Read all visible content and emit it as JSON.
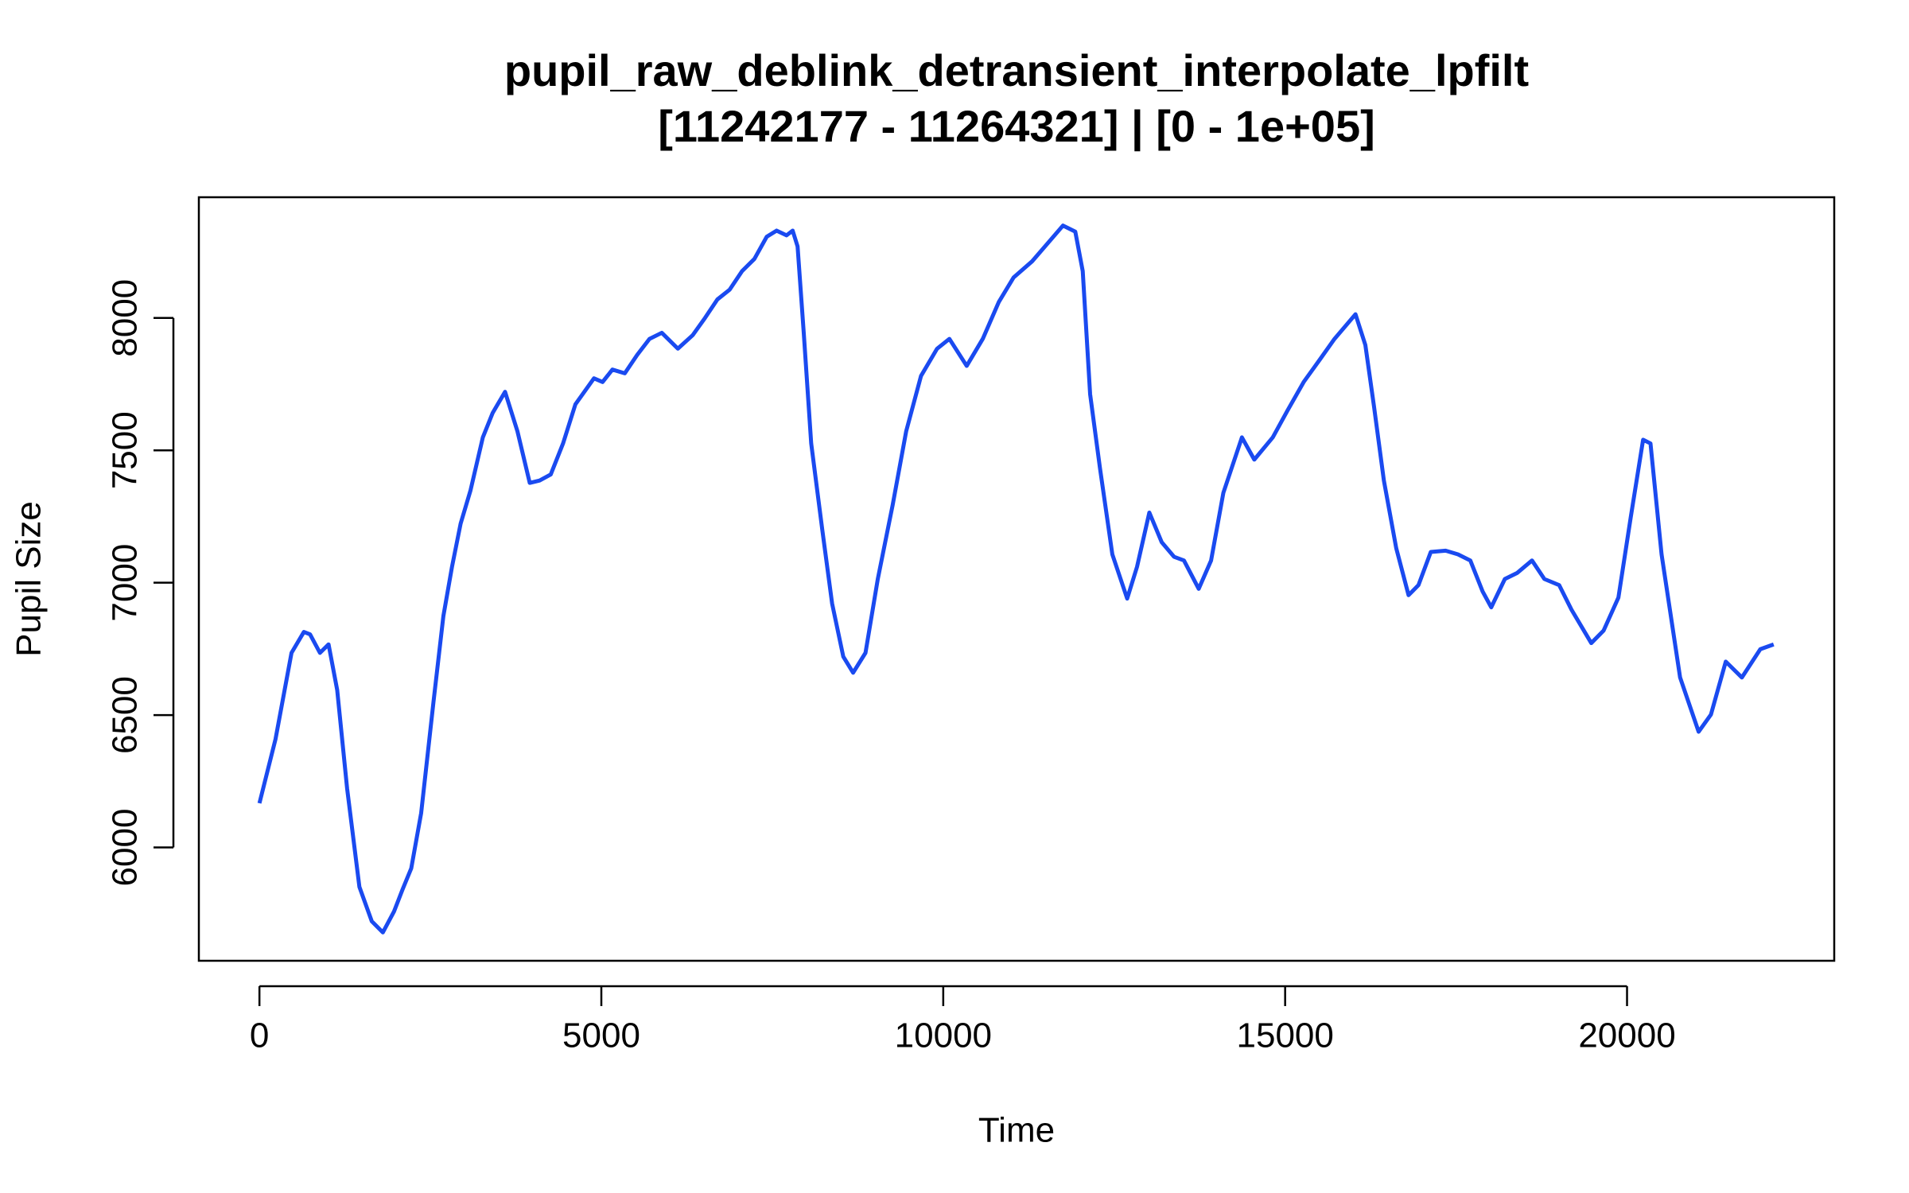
{
  "chart_data": {
    "type": "line",
    "title": "pupil_raw_deblink_detransient_interpolate_lpfilt",
    "subtitle": "[11242177 - 11264321] | [0 - 1e+05]",
    "x_label": "Time",
    "y_label": "Pupil Size",
    "xlim": [
      -886,
      23030
    ],
    "ylim": [
      5572,
      8456
    ],
    "xticks": [
      0,
      5000,
      10000,
      15000,
      20000
    ],
    "yticks": [
      6000,
      6500,
      7000,
      7500,
      8000
    ],
    "series": [
      {
        "color": "#1a4af0",
        "x": [
          0,
          235,
          469,
          650,
          740,
          885,
          1011,
          1137,
          1282,
          1462,
          1643,
          1805,
          1968,
          2094,
          2220,
          2365,
          2545,
          2690,
          2816,
          2942,
          3087,
          3267,
          3412,
          3592,
          3773,
          3953,
          4097,
          4260,
          4440,
          4621,
          4892,
          5018,
          5162,
          5343,
          5523,
          5704,
          5884,
          6119,
          6336,
          6516,
          6697,
          6877,
          7058,
          7238,
          7419,
          7563,
          7708,
          7798,
          7870,
          7960,
          8069,
          8231,
          8375,
          8538,
          8682,
          8863,
          9043,
          9260,
          9458,
          9675,
          9910,
          10090,
          10343,
          10578,
          10812,
          11029,
          11300,
          11534,
          11751,
          11931,
          12040,
          12148,
          12292,
          12473,
          12690,
          12834,
          13014,
          13195,
          13375,
          13520,
          13736,
          13917,
          14097,
          14368,
          14549,
          14819,
          15036,
          15271,
          15505,
          15722,
          16029,
          16173,
          16300,
          16444,
          16625,
          16805,
          16950,
          17130,
          17347,
          17527,
          17708,
          17888,
          18014,
          18213,
          18394,
          18610,
          18791,
          19007,
          19188,
          19477,
          19657,
          19874,
          20054,
          20235,
          20343,
          20505,
          20776,
          21047,
          21227,
          21444,
          21679,
          21949,
          22144
        ],
        "values": [
          6167,
          6409,
          6735,
          6814,
          6805,
          6735,
          6767,
          6595,
          6223,
          5851,
          5721,
          5679,
          5758,
          5842,
          5921,
          6130,
          6549,
          6874,
          7060,
          7223,
          7349,
          7549,
          7642,
          7721,
          7572,
          7377,
          7386,
          7409,
          7526,
          7674,
          7772,
          7758,
          7805,
          7791,
          7860,
          7921,
          7944,
          7884,
          7935,
          8000,
          8070,
          8107,
          8177,
          8223,
          8307,
          8330,
          8312,
          8330,
          8270,
          7944,
          7526,
          7200,
          6921,
          6721,
          6660,
          6735,
          7014,
          7293,
          7572,
          7781,
          7884,
          7921,
          7819,
          7921,
          8060,
          8153,
          8214,
          8284,
          8349,
          8326,
          8177,
          7712,
          7433,
          7107,
          6940,
          7060,
          7265,
          7153,
          7098,
          7084,
          6977,
          7084,
          7340,
          7549,
          7465,
          7549,
          7651,
          7758,
          7842,
          7921,
          8014,
          7898,
          7665,
          7386,
          7130,
          6953,
          6991,
          7116,
          7121,
          7107,
          7084,
          6967,
          6907,
          7014,
          7037,
          7084,
          7014,
          6991,
          6898,
          6772,
          6819,
          6944,
          7247,
          7540,
          7526,
          7107,
          6642,
          6437,
          6502,
          6702,
          6642,
          6749,
          6767
        ]
      }
    ]
  }
}
